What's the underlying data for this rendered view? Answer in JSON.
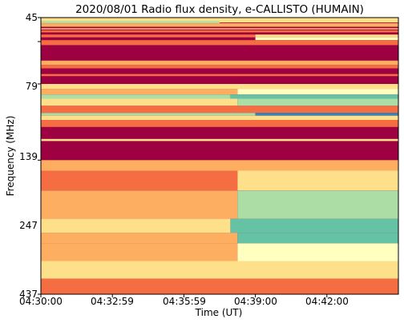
{
  "chart_data": {
    "type": "heatmap",
    "title": "2020/08/01  Radio flux density, e-CALLISTO (HUMAIN)",
    "xlabel": "Time (UT)",
    "ylabel": "Frequency (MHz)",
    "x_ticks": [
      "04:30:00",
      "04:32:59",
      "04:35:59",
      "04:39:00",
      "04:42:00"
    ],
    "x_tick_fractions": [
      0.0,
      0.2,
      0.4,
      0.6,
      0.8
    ],
    "y_ticks": [
      45,
      79,
      139,
      247,
      437
    ],
    "y_range_mhz": [
      45,
      437
    ],
    "time_range": [
      "04:30:00",
      "04:45:00"
    ],
    "colormap": "Spectral_r",
    "colors": {
      "background": "#9e0142",
      "mid": "#d53e4f",
      "warm": "#f46d43",
      "light": "#fdae61",
      "pale": "#fee08b",
      "cream": "#ffffbf",
      "green": "#abdda4",
      "teal": "#66c2a5",
      "blue": "#3288bd"
    },
    "bands": [
      {
        "f_start": 45,
        "f_end": 52,
        "t_start": 0.0,
        "t_end": 1.0,
        "intensity": 0.45
      },
      {
        "f_start": 50,
        "f_end": 53,
        "t_start": 0.0,
        "t_end": 0.5,
        "intensity": 0.72
      },
      {
        "f_start": 53,
        "f_end": 58,
        "t_start": 0.0,
        "t_end": 1.0,
        "intensity": 0.35
      },
      {
        "f_start": 60,
        "f_end": 62,
        "t_start": 0.0,
        "t_end": 1.0,
        "intensity": 0.4
      },
      {
        "f_start": 63,
        "f_end": 66,
        "t_start": 0.0,
        "t_end": 1.0,
        "intensity": 0.3
      },
      {
        "f_start": 69,
        "f_end": 73,
        "t_start": 0.0,
        "t_end": 0.6,
        "intensity": 0.3
      },
      {
        "f_start": 69,
        "f_end": 73,
        "t_start": 0.6,
        "t_end": 1.0,
        "intensity": 0.55
      },
      {
        "f_start": 73,
        "f_end": 77,
        "t_start": 0.6,
        "t_end": 1.0,
        "intensity": 0.62
      },
      {
        "f_start": 77,
        "f_end": 84,
        "t_start": 0.0,
        "t_end": 1.0,
        "intensity": 0.28
      },
      {
        "f_start": 106,
        "f_end": 112,
        "t_start": 0.0,
        "t_end": 1.0,
        "intensity": 0.4
      },
      {
        "f_start": 112,
        "f_end": 117,
        "t_start": 0.0,
        "t_end": 1.0,
        "intensity": 0.3
      },
      {
        "f_start": 125,
        "f_end": 128,
        "t_start": 0.0,
        "t_end": 1.0,
        "intensity": 0.22
      },
      {
        "f_start": 139,
        "f_end": 146,
        "t_start": 0.0,
        "t_end": 1.0,
        "intensity": 0.5
      },
      {
        "f_start": 146,
        "f_end": 154,
        "t_start": 0.0,
        "t_end": 0.55,
        "intensity": 0.4
      },
      {
        "f_start": 146,
        "f_end": 154,
        "t_start": 0.55,
        "t_end": 1.0,
        "intensity": 0.65
      },
      {
        "f_start": 154,
        "f_end": 160,
        "t_start": 0.0,
        "t_end": 0.53,
        "intensity": 0.78
      },
      {
        "f_start": 154,
        "f_end": 160,
        "t_start": 0.53,
        "t_end": 1.0,
        "intensity": 0.88
      },
      {
        "f_start": 160,
        "f_end": 170,
        "t_start": 0.0,
        "t_end": 0.55,
        "intensity": 0.5
      },
      {
        "f_start": 160,
        "f_end": 170,
        "t_start": 0.55,
        "t_end": 1.0,
        "intensity": 0.72
      },
      {
        "f_start": 170,
        "f_end": 180,
        "t_start": 0.0,
        "t_end": 1.0,
        "intensity": 0.25
      },
      {
        "f_start": 180,
        "f_end": 184,
        "t_start": 0.0,
        "t_end": 0.6,
        "intensity": 0.7
      },
      {
        "f_start": 180,
        "f_end": 184,
        "t_start": 0.6,
        "t_end": 1.0,
        "intensity": 0.95
      },
      {
        "f_start": 184,
        "f_end": 190,
        "t_start": 0.0,
        "t_end": 1.0,
        "intensity": 0.45
      },
      {
        "f_start": 190,
        "f_end": 200,
        "t_start": 0.0,
        "t_end": 1.0,
        "intensity": 0.2
      },
      {
        "f_start": 217,
        "f_end": 220,
        "t_start": 0.0,
        "t_end": 1.0,
        "intensity": 0.5
      },
      {
        "f_start": 247,
        "f_end": 262,
        "t_start": 0.0,
        "t_end": 1.0,
        "intensity": 0.35
      },
      {
        "f_start": 262,
        "f_end": 290,
        "t_start": 0.0,
        "t_end": 0.55,
        "intensity": 0.3
      },
      {
        "f_start": 262,
        "f_end": 290,
        "t_start": 0.55,
        "t_end": 1.0,
        "intensity": 0.55
      },
      {
        "f_start": 290,
        "f_end": 330,
        "t_start": 0.0,
        "t_end": 0.55,
        "intensity": 0.4
      },
      {
        "f_start": 290,
        "f_end": 330,
        "t_start": 0.55,
        "t_end": 1.0,
        "intensity": 0.7
      },
      {
        "f_start": 330,
        "f_end": 350,
        "t_start": 0.0,
        "t_end": 0.53,
        "intensity": 0.5
      },
      {
        "f_start": 330,
        "f_end": 350,
        "t_start": 0.53,
        "t_end": 1.0,
        "intensity": 0.82
      },
      {
        "f_start": 350,
        "f_end": 365,
        "t_start": 0.0,
        "t_end": 0.55,
        "intensity": 0.35
      },
      {
        "f_start": 350,
        "f_end": 365,
        "t_start": 0.55,
        "t_end": 1.0,
        "intensity": 0.93
      },
      {
        "f_start": 365,
        "f_end": 390,
        "t_start": 0.0,
        "t_end": 0.55,
        "intensity": 0.35
      },
      {
        "f_start": 365,
        "f_end": 390,
        "t_start": 0.55,
        "t_end": 1.0,
        "intensity": 0.6
      },
      {
        "f_start": 390,
        "f_end": 415,
        "t_start": 0.0,
        "t_end": 1.0,
        "intensity": 0.45
      },
      {
        "f_start": 415,
        "f_end": 437,
        "t_start": 0.0,
        "t_end": 1.0,
        "intensity": 0.3
      }
    ]
  }
}
